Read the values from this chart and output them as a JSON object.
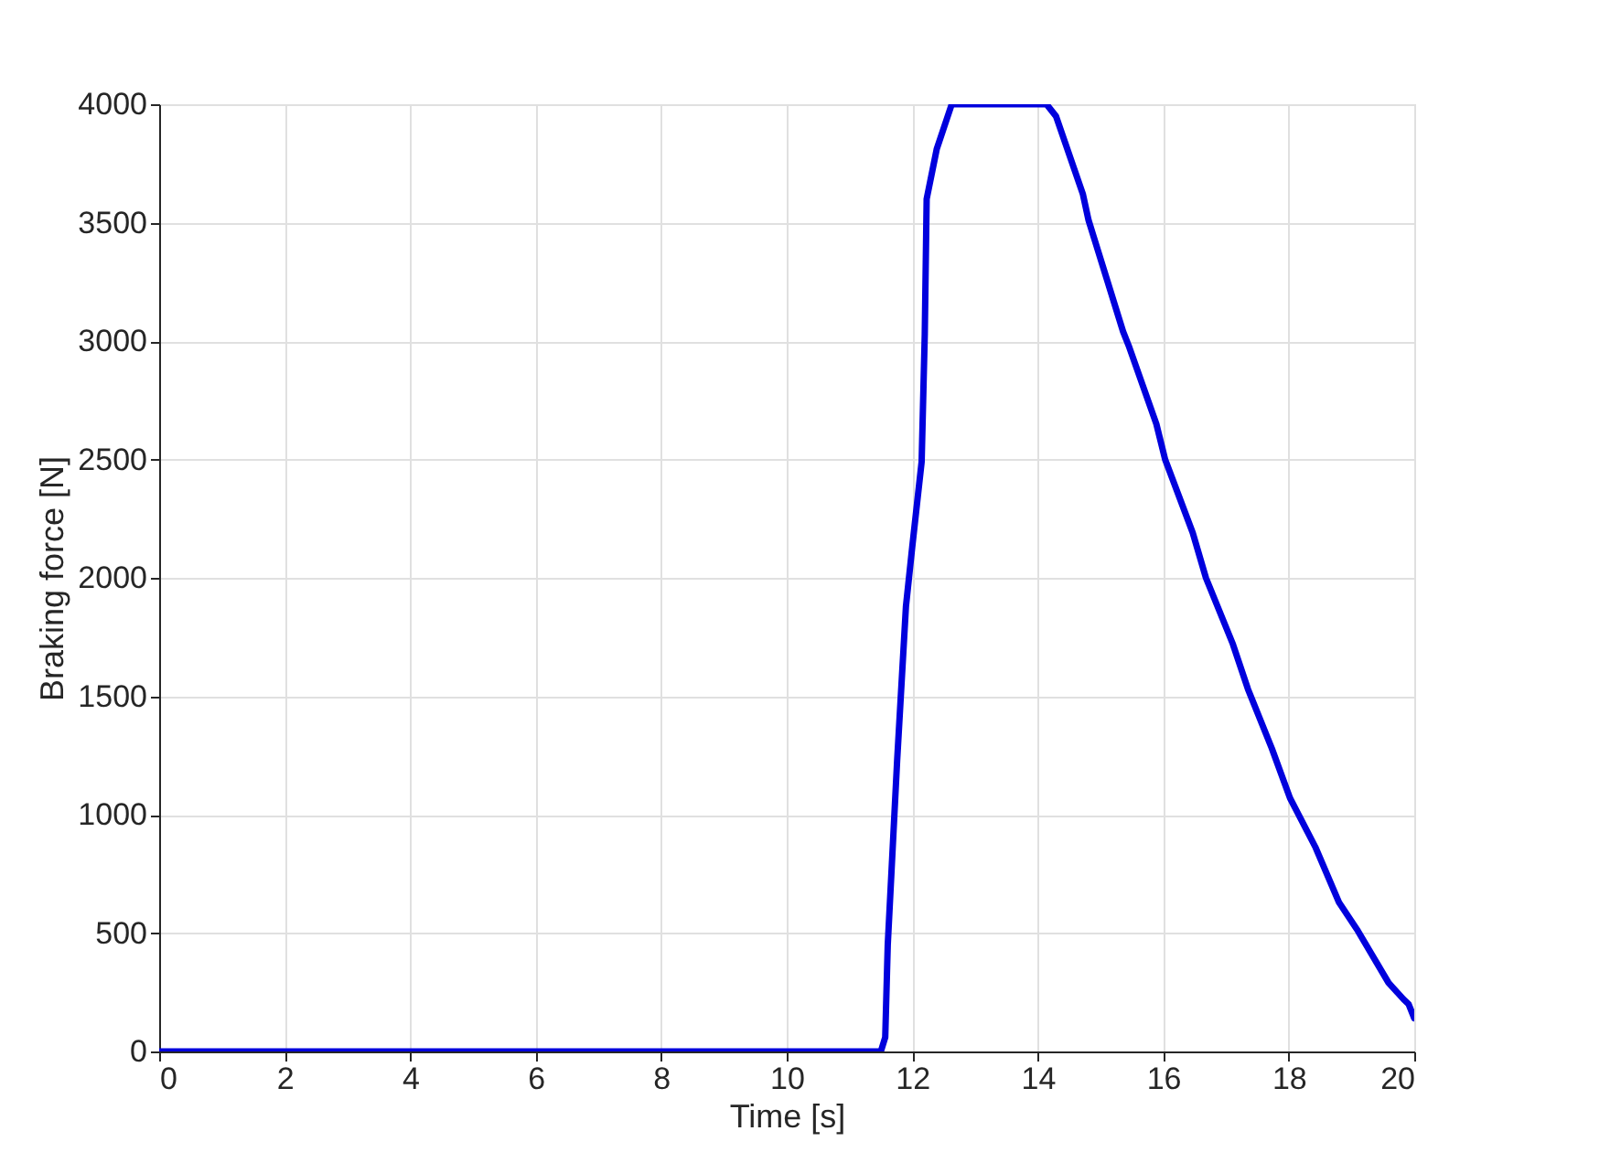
{
  "chart_data": {
    "type": "line",
    "xlabel": "Time [s]",
    "ylabel": "Braking force [N]",
    "xlim": [
      0,
      20
    ],
    "xticks": [
      0,
      2,
      4,
      6,
      8,
      10,
      12,
      14,
      16,
      18,
      20
    ],
    "ylim": [
      0,
      4000
    ],
    "yticks": [
      0,
      500,
      1000,
      1500,
      2000,
      2500,
      3000,
      3500,
      4000
    ],
    "grid": true,
    "line_style": "solid",
    "marker": "none",
    "series": [
      {
        "color": "#0000dd",
        "x": [
          0,
          11.5,
          11.57,
          11.61,
          11.76,
          11.9,
          12.0,
          12.15,
          12.2,
          12.23,
          12.39,
          12.63,
          14.14,
          14.29,
          14.72,
          14.81,
          15.36,
          15.45,
          15.89,
          16.03,
          16.47,
          16.68,
          17.11,
          17.35,
          17.73,
          18.02,
          18.43,
          18.8,
          19.1,
          19.59,
          19.83,
          19.91,
          20
        ],
        "values": [
          0,
          0,
          60,
          450,
          1230,
          1880,
          2130,
          2490,
          3030,
          3600,
          3810,
          4000,
          4000,
          3950,
          3620,
          3510,
          3040,
          2980,
          2650,
          2500,
          2190,
          2000,
          1720,
          1530,
          1280,
          1070,
          860,
          630,
          510,
          290,
          220,
          200,
          140
        ]
      }
    ]
  }
}
